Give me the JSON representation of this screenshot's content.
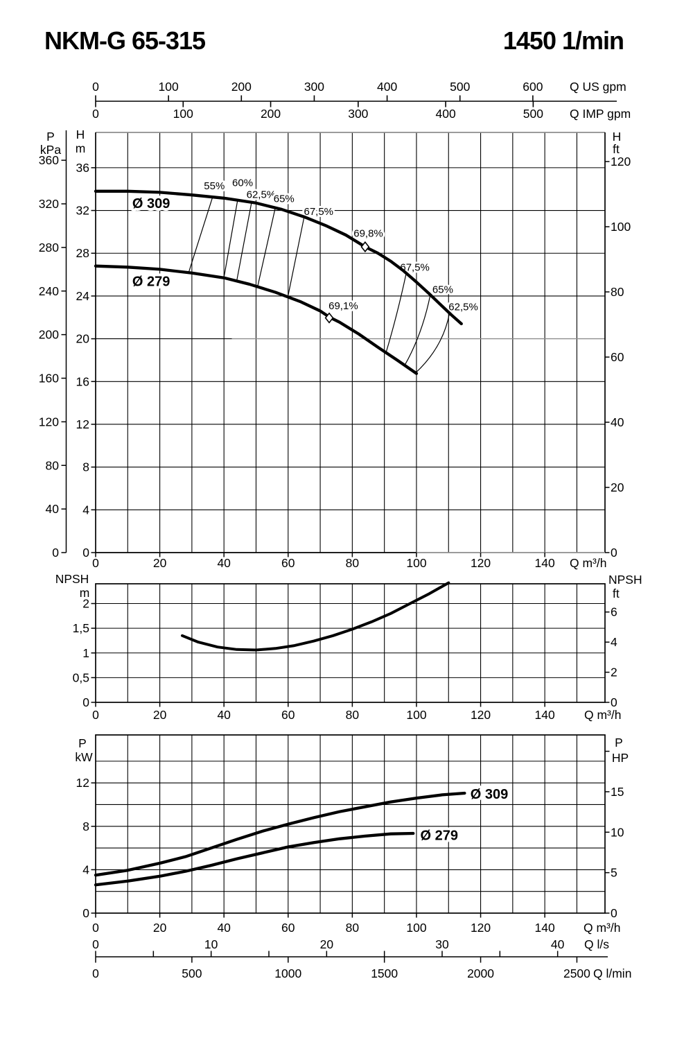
{
  "header": {
    "model": "NKM-G 65-315",
    "speed": "1450 1/min"
  },
  "colors": {
    "ink": "#000000",
    "gray_line": "#8d8d8d"
  },
  "chart_data": {
    "type": "line",
    "top_axis": {
      "us": {
        "unit_label": "Q US gpm",
        "ticks": [
          0,
          100,
          200,
          300,
          400,
          500,
          600
        ],
        "m3h_per_gpm": 0.22712
      },
      "imp": {
        "unit_label": "Q IMP gpm",
        "ticks": [
          0,
          100,
          200,
          300,
          400,
          500
        ],
        "m3h_per_gpm": 0.27276
      }
    },
    "q_axis_shared": {
      "tick_labels": [
        0,
        20,
        40,
        60,
        80,
        100,
        120,
        140
      ],
      "grid_step": 10,
      "grid_max": 150,
      "q_max": 158.76,
      "unit_label": "Q m³/h"
    },
    "main_chart": {
      "title_hint": "head curves",
      "h_axis": {
        "header_top": "H",
        "header_unit": "m",
        "ticks": [
          0,
          4,
          8,
          12,
          16,
          20,
          24,
          28,
          32,
          36
        ],
        "h_max": 39.3
      },
      "kpa_axis": {
        "header_top": "P",
        "header_unit": "kPa",
        "ticks": [
          0,
          40,
          80,
          120,
          160,
          200,
          240,
          280,
          320,
          360
        ],
        "kpa_per_m": 9.81
      },
      "ft_axis": {
        "header_top": "H",
        "header_unit": "ft",
        "ticks": [
          0,
          20,
          40,
          60,
          80,
          100,
          120
        ],
        "m_per_ft": 0.3048
      },
      "gray_gridline": {
        "h": 20,
        "from_q": 42.5
      },
      "gray_bottom_from_q": 100,
      "curves": [
        {
          "label": "Ø 309",
          "label_pos": [
            17.3,
            32.7
          ],
          "points": [
            [
              0,
              33.8
            ],
            [
              10,
              33.8
            ],
            [
              20,
              33.7
            ],
            [
              30,
              33.45
            ],
            [
              40,
              33.15
            ],
            [
              50,
              32.7
            ],
            [
              58,
              32.1
            ],
            [
              65,
              31.4
            ],
            [
              72,
              30.55
            ],
            [
              78,
              29.7
            ],
            [
              84,
              28.6
            ],
            [
              88,
              28.0
            ],
            [
              92,
              27.25
            ],
            [
              96,
              26.35
            ],
            [
              100,
              25.3
            ],
            [
              104,
              24.2
            ],
            [
              108,
              23.05
            ],
            [
              111,
              22.2
            ],
            [
              114,
              21.4
            ]
          ]
        },
        {
          "label": "Ø 279",
          "label_pos": [
            17.3,
            25.4
          ],
          "points": [
            [
              0,
              26.8
            ],
            [
              10,
              26.7
            ],
            [
              20,
              26.5
            ],
            [
              30,
              26.15
            ],
            [
              40,
              25.7
            ],
            [
              48,
              25.1
            ],
            [
              56,
              24.35
            ],
            [
              64,
              23.45
            ],
            [
              70,
              22.6
            ],
            [
              73,
              22.0
            ],
            [
              76,
              21.55
            ],
            [
              82,
              20.45
            ],
            [
              88,
              19.2
            ],
            [
              94,
              18.0
            ],
            [
              100,
              16.75
            ]
          ]
        }
      ],
      "efficiency_lines_left": [
        {
          "label": "55%",
          "from": [
            36.5,
            33.3
          ],
          "to": [
            29,
            26.2
          ],
          "label_pos": [
            37.0,
            34.3
          ]
        },
        {
          "label": "60%",
          "from": [
            44.3,
            33.05
          ],
          "to": [
            40,
            25.75
          ],
          "label_pos": [
            45.8,
            34.6
          ]
        },
        {
          "label": "62,5%",
          "from": [
            48.6,
            32.75
          ],
          "to": [
            44,
            25.45
          ],
          "label_pos": [
            51.6,
            33.5
          ]
        },
        {
          "label": "65%",
          "from": [
            56,
            32.25
          ],
          "to": [
            50.5,
            24.9
          ],
          "label_pos": [
            58.7,
            33.1
          ]
        },
        {
          "label": "67,5%",
          "from": [
            65,
            31.4
          ],
          "to": [
            60,
            24.05
          ],
          "label_pos": [
            69.5,
            31.9
          ]
        }
      ],
      "efficiency_lines_right": [
        {
          "label": "67,5%",
          "from": [
            96.8,
            26.1
          ],
          "ctrl": [
            94.0,
            22.2
          ],
          "to": [
            90.5,
            18.7
          ],
          "label_pos": [
            99.5,
            26.7
          ]
        },
        {
          "label": "65%",
          "from": [
            104.3,
            24.1
          ],
          "ctrl": [
            101.8,
            20.4
          ],
          "to": [
            96.3,
            17.5
          ],
          "label_pos": [
            108.2,
            24.6
          ]
        },
        {
          "label": "62,5%",
          "from": [
            110.3,
            22.4
          ],
          "ctrl": [
            108.3,
            19.2
          ],
          "to": [
            99.7,
            16.8
          ],
          "label_pos": [
            114.6,
            23.0
          ]
        }
      ],
      "bep_markers": [
        {
          "label": "69,8%",
          "at": [
            84,
            28.6
          ],
          "label_pos": [
            85.0,
            29.85
          ]
        },
        {
          "label": "69,1%",
          "at": [
            72.8,
            21.95
          ],
          "label_pos": [
            77.2,
            23.1
          ]
        }
      ]
    },
    "npsh_chart": {
      "n_axis": {
        "header_top": "NPSH",
        "header_unit": "m",
        "tick_labels": [
          "0",
          "0,5",
          "1",
          "1,5",
          "2"
        ],
        "tick_values": [
          0,
          0.5,
          1,
          1.5,
          2
        ],
        "n_max": 2.4
      },
      "ft_axis": {
        "header_top": "NPSH",
        "header_unit": "ft",
        "ticks": [
          0,
          2,
          4,
          6
        ],
        "m_per_ft": 0.3048
      },
      "curve": {
        "points": [
          [
            27,
            1.35
          ],
          [
            32,
            1.22
          ],
          [
            38,
            1.12
          ],
          [
            44,
            1.07
          ],
          [
            50,
            1.06
          ],
          [
            56,
            1.09
          ],
          [
            62,
            1.15
          ],
          [
            68,
            1.24
          ],
          [
            74,
            1.35
          ],
          [
            80,
            1.48
          ],
          [
            86,
            1.63
          ],
          [
            92,
            1.8
          ],
          [
            98,
            2.0
          ],
          [
            104,
            2.2
          ],
          [
            110,
            2.42
          ]
        ]
      }
    },
    "power_chart": {
      "p_axis": {
        "header_top": "P",
        "header_unit": "kW",
        "tick_labels": [
          0,
          4,
          8,
          12
        ],
        "grid_step": 2,
        "grid_max": 14,
        "p_max": 16.42
      },
      "hp_axis": {
        "header_top": "P",
        "header_unit": "HP",
        "ticks": [
          0,
          5,
          10,
          15
        ],
        "unlabeled_tick": 20,
        "kw_per_hp": 0.7457
      },
      "curves": [
        {
          "label": "Ø 309",
          "label_pos": [
            116.8,
            11.0
          ],
          "points": [
            [
              0,
              3.5
            ],
            [
              10,
              3.95
            ],
            [
              20,
              4.6
            ],
            [
              28,
              5.2
            ],
            [
              36,
              6.0
            ],
            [
              44,
              6.8
            ],
            [
              52,
              7.55
            ],
            [
              60,
              8.2
            ],
            [
              68,
              8.8
            ],
            [
              76,
              9.35
            ],
            [
              84,
              9.8
            ],
            [
              92,
              10.25
            ],
            [
              100,
              10.6
            ],
            [
              108,
              10.9
            ],
            [
              115,
              11.05
            ]
          ]
        },
        {
          "label": "Ø 279",
          "label_pos": [
            101.2,
            7.2
          ],
          "points": [
            [
              0,
              2.6
            ],
            [
              10,
              2.95
            ],
            [
              20,
              3.4
            ],
            [
              28,
              3.85
            ],
            [
              36,
              4.4
            ],
            [
              44,
              5.0
            ],
            [
              52,
              5.55
            ],
            [
              60,
              6.1
            ],
            [
              68,
              6.5
            ],
            [
              76,
              6.85
            ],
            [
              84,
              7.1
            ],
            [
              92,
              7.3
            ],
            [
              99,
              7.35
            ]
          ]
        }
      ]
    },
    "bottom_axis": {
      "ls": {
        "unit_label": "Q l/s",
        "tick_step": 5,
        "labeled_ticks": [
          0,
          10,
          20,
          30,
          40
        ],
        "m3h_per_ls": 3.6
      },
      "lmin": {
        "unit_label": "Q l/min",
        "labeled_ticks": [
          0,
          500,
          1000,
          1500,
          2000,
          2500
        ],
        "m3h_per_lmin": 0.06
      }
    }
  }
}
